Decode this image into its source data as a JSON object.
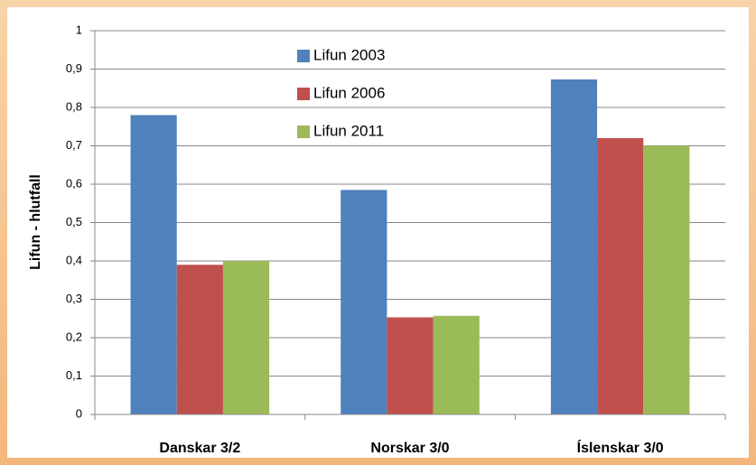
{
  "chart_data": {
    "type": "bar",
    "y_label": "Lifun - hlutfall",
    "categories": [
      "Danskar 3/2",
      "Norskar 3/0",
      "Íslenskar 3/0"
    ],
    "series": [
      {
        "name": "Lifun 2003",
        "color": "#4f81bd",
        "values": [
          0.78,
          0.585,
          0.873
        ]
      },
      {
        "name": "Lifun 2006",
        "color": "#c0504d",
        "values": [
          0.39,
          0.253,
          0.72
        ]
      },
      {
        "name": "Lifun 2011",
        "color": "#9bbb59",
        "values": [
          0.4,
          0.257,
          0.7
        ]
      }
    ],
    "ylim": [
      0,
      1
    ],
    "yticks": [
      0,
      {
        "value": 0.1,
        "label": "0,1"
      },
      {
        "value": 0.2,
        "label": "0,2"
      },
      {
        "value": 0.3,
        "label": "0,3"
      },
      {
        "value": 0.4,
        "label": "0,4"
      },
      {
        "value": 0.5,
        "label": "0,5"
      },
      {
        "value": 0.6,
        "label": "0,6"
      },
      {
        "value": 0.7,
        "label": "0,7"
      },
      {
        "value": 0.8,
        "label": "0,8"
      },
      {
        "value": 0.9,
        "label": "0,9"
      },
      1
    ],
    "grid": true
  }
}
